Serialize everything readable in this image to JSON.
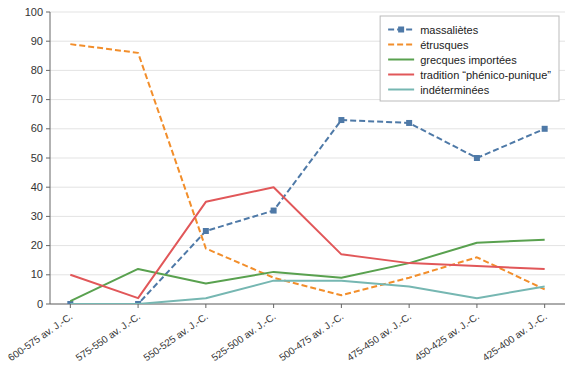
{
  "chart_data": {
    "type": "line",
    "categories": [
      "600-575 av. J.-C.",
      "575-550 av. J.-C.",
      "550-525 av. J.-C.",
      "525-500 av. J.-C.",
      "500-475 av. J.-C.",
      "475-450 av. J.-C.",
      "450-425 av. J.-C.",
      "425-400 av. J.-C."
    ],
    "series": [
      {
        "name": "massaliètes",
        "values": [
          0,
          0,
          25,
          32,
          63,
          62,
          50,
          60
        ],
        "line_style": "dashed",
        "marker": "square"
      },
      {
        "name": "étrusques",
        "values": [
          89,
          86,
          19,
          9,
          3,
          9,
          16,
          5
        ],
        "line_style": "dashed"
      },
      {
        "name": "grecques importées",
        "values": [
          1,
          12,
          7,
          11,
          9,
          14,
          21,
          22
        ],
        "line_style": "solid"
      },
      {
        "name": "tradition “phénico-punique”",
        "values": [
          10,
          2,
          35,
          40,
          17,
          14,
          13,
          12
        ],
        "line_style": "solid"
      },
      {
        "name": "indéterminées",
        "values": [
          0,
          0,
          2,
          8,
          8,
          6,
          2,
          6
        ],
        "line_style": "solid"
      }
    ],
    "ylim": [
      0,
      100
    ],
    "yticks": [
      0,
      10,
      20,
      30,
      40,
      50,
      60,
      70,
      80,
      90,
      100
    ],
    "grid": true,
    "legend": "upper right"
  }
}
